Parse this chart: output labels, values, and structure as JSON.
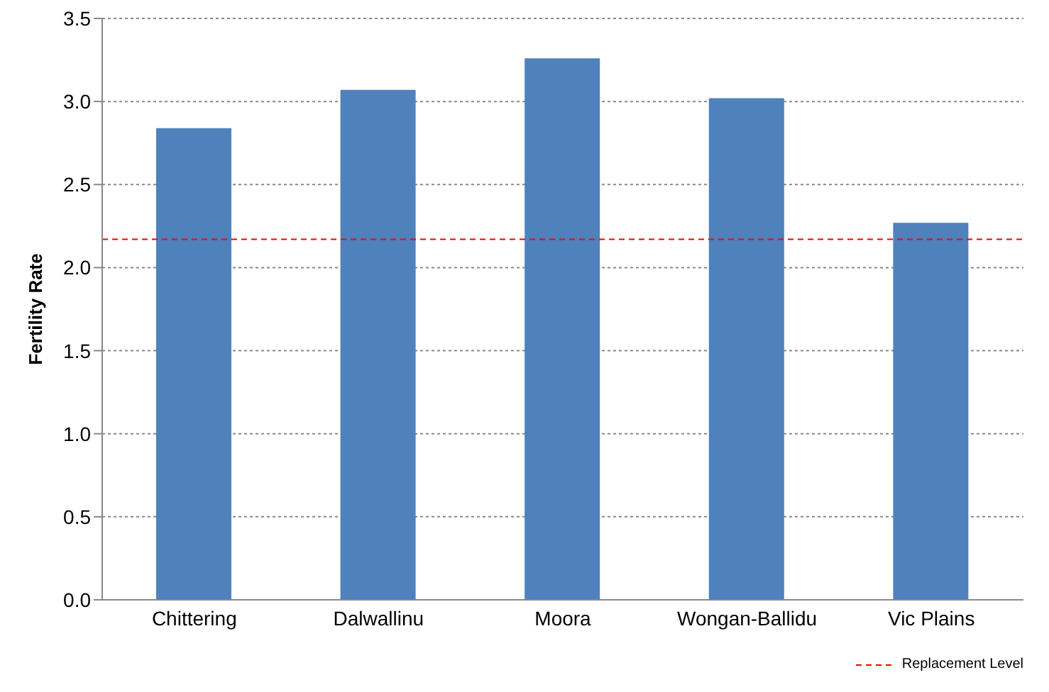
{
  "chart_data": {
    "type": "bar",
    "ylabel": "Fertility Rate",
    "categories": [
      "Chittering",
      "Dalwallinu",
      "Moora",
      "Wongan-Ballidu",
      "Vic Plains"
    ],
    "values": [
      2.84,
      3.07,
      3.26,
      3.02,
      2.27
    ],
    "color": "#4f81bd",
    "ylim": [
      0,
      3.5
    ],
    "yticks": [
      {
        "value": 0,
        "label": "0.0"
      },
      {
        "value": 0.5,
        "label": "0.5"
      },
      {
        "value": 1,
        "label": "1.0"
      },
      {
        "value": 1.5,
        "label": "1.5"
      },
      {
        "value": 2,
        "label": "2.0"
      },
      {
        "value": 2.5,
        "label": "2.5"
      },
      {
        "value": 3,
        "label": "3.0"
      },
      {
        "value": 3.5,
        "label": "3.5"
      }
    ],
    "grid": "y",
    "legend": "bottom right",
    "ref_lines": [
      {
        "axis": "y",
        "value": 2.17,
        "label": "Replacement Level",
        "color": "#ff0000",
        "line_style": "dashed"
      }
    ]
  }
}
